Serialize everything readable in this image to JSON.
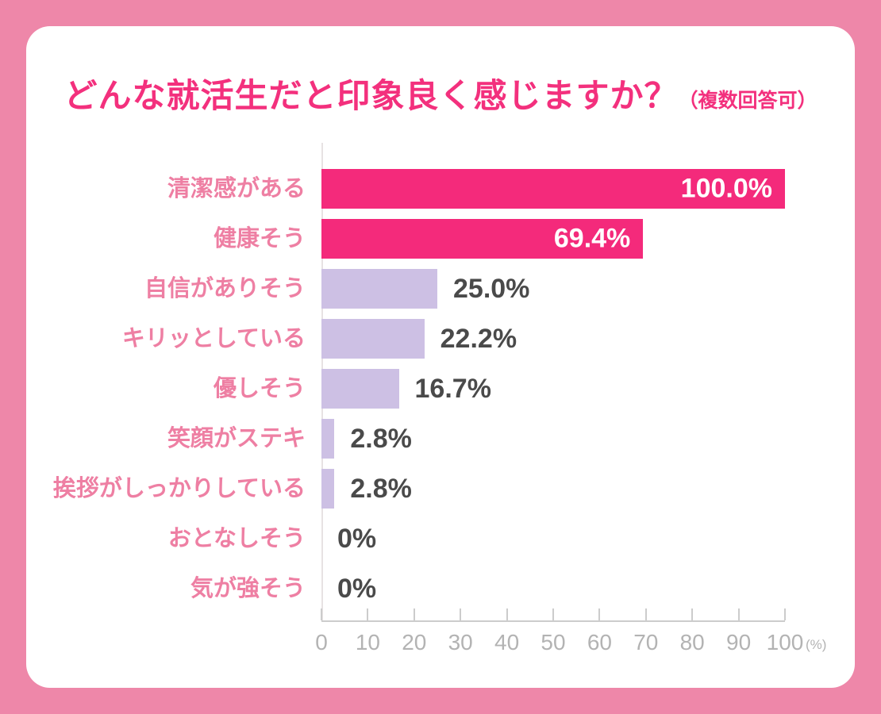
{
  "page": {
    "background_color": "#EE87A9",
    "card_color": "#FFFFFF"
  },
  "chart_data": {
    "type": "bar",
    "orientation": "horizontal",
    "title": "どんな就活生だと印象良く感じますか？",
    "title_note": "（複数回答可）",
    "categories": [
      "清潔感がある",
      "健康そう",
      "自信がありそう",
      "キリッとしている",
      "優しそう",
      "笑顔がステキ",
      "挨拶がしっかりしている",
      "おとなしそう",
      "気が強そう"
    ],
    "values": [
      100.0,
      69.4,
      25.0,
      22.2,
      16.7,
      2.8,
      2.8,
      0,
      0
    ],
    "value_labels": [
      "100.0%",
      "69.4%",
      "25.0%",
      "22.2%",
      "16.7%",
      "2.8%",
      "2.8%",
      "0%",
      "0%"
    ],
    "bar_colors": [
      "#F42A7B",
      "#F42A7B",
      "#CDC0E4",
      "#CDC0E4",
      "#CDC0E4",
      "#CDC0E4",
      "#CDC0E4",
      "#CDC0E4",
      "#CDC0E4"
    ],
    "xlim": [
      0,
      100
    ],
    "xticks": [
      0,
      10,
      20,
      30,
      40,
      50,
      60,
      70,
      80,
      90,
      100
    ],
    "x_unit": "(%)",
    "grid": "off",
    "legend": "none",
    "colors": {
      "highlight_bar": "#F42A7B",
      "normal_bar": "#CDC0E4",
      "title_text": "#F3307D",
      "category_label": "#EE7FA3",
      "value_label_inside": "#FFFFFF",
      "value_label_outside": "#4A4A4A",
      "axis_text": "#B3B3B3",
      "axis_line": "#CCCCCC",
      "frame_pink": "#EE87A9"
    }
  }
}
